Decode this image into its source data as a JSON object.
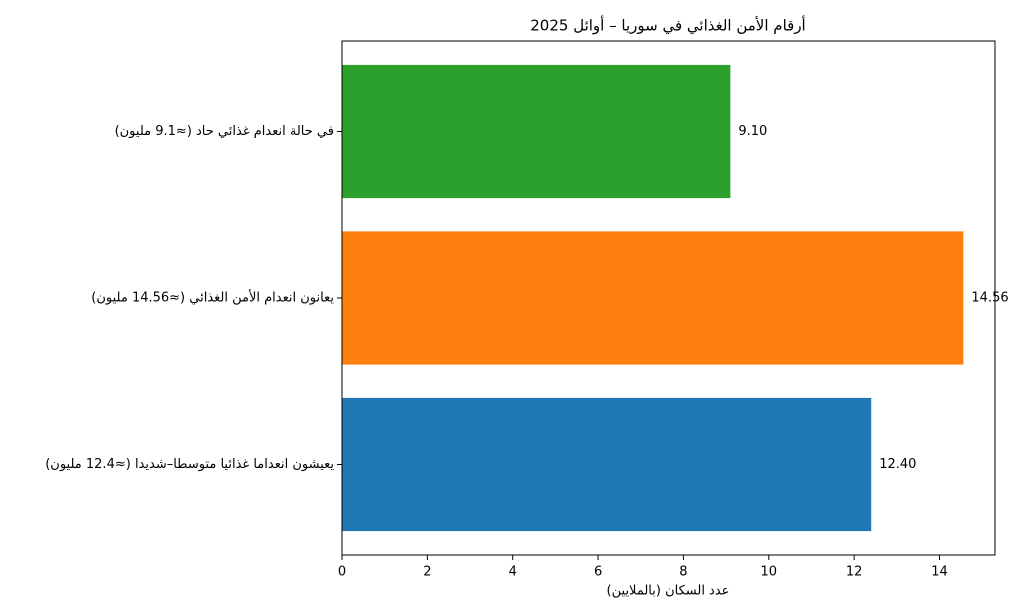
{
  "chart_data": {
    "type": "barh",
    "title": "أرقام الأمن الغذائي في سوريا – أوائل 2025",
    "x_label": "عدد السكان (بالملايين)",
    "categories": [
      "يعيشون انعداما غذائيا متوسطا–شديدا (≈12.4 مليون)",
      "يعانون انعدام الأمن الغذائي (≈14.56 مليون)",
      "في حالة انعدام غذائي حاد (≈9.1 مليون)"
    ],
    "values": [
      12.4,
      14.56,
      9.1
    ],
    "value_labels": [
      "12.40",
      "14.56",
      "9.10"
    ],
    "colors": [
      "#1f77b4",
      "#ff7f0e",
      "#2ca02c"
    ],
    "xlim": [
      0,
      15.3
    ],
    "xticks": [
      0,
      2,
      4,
      6,
      8,
      10,
      12,
      14
    ],
    "grid": false
  }
}
